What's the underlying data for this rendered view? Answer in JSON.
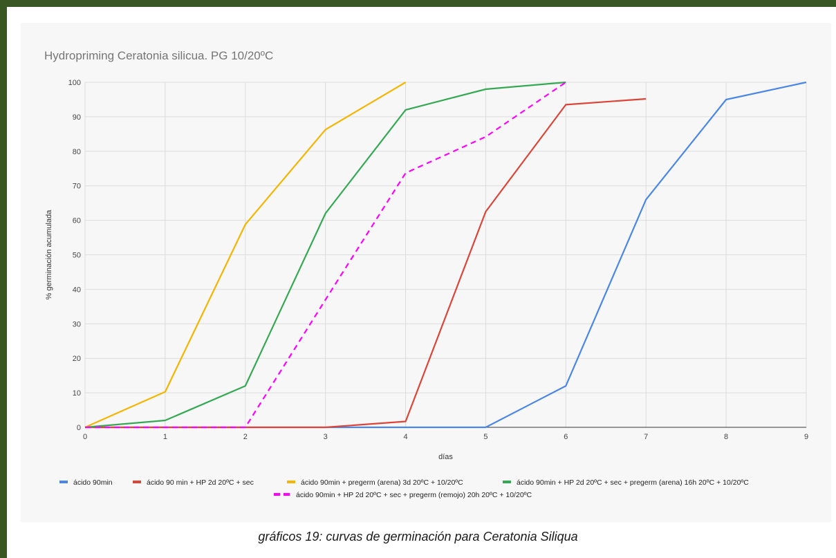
{
  "caption": "gráficos 19: curvas de germinación para Ceratonia Siliqua",
  "chart_data": {
    "type": "line",
    "title": "Hydropriming Ceratonia silicua. PG 10/20ºC",
    "xlabel": "días",
    "ylabel": "% germinación acumulada",
    "xlim": [
      0,
      9
    ],
    "ylim": [
      0,
      100
    ],
    "xticks": [
      0,
      1,
      2,
      3,
      4,
      5,
      6,
      7,
      8,
      9
    ],
    "yticks": [
      0,
      10,
      20,
      30,
      40,
      50,
      60,
      70,
      80,
      90,
      100
    ],
    "grid": true,
    "legend_position": "bottom",
    "series": [
      {
        "name": "ácido 90min",
        "color": "#4a86e8",
        "dashed": false,
        "x": [
          0,
          1,
          2,
          3,
          4,
          5,
          6,
          7,
          8,
          9
        ],
        "y": [
          0,
          0,
          0,
          0,
          0,
          0,
          12,
          66,
          95,
          100
        ]
      },
      {
        "name": "ácido 90 min + HP 2d 20ºC + sec",
        "color": "#db4437",
        "dashed": false,
        "x": [
          0,
          1,
          2,
          3,
          4,
          5,
          6,
          7
        ],
        "y": [
          0,
          0,
          0,
          0,
          1.7,
          62.5,
          93.5,
          95.2
        ]
      },
      {
        "name": "ácido 90min + pregerm (arena) 3d 20ºC + 10/20ºC",
        "color": "#f4b400",
        "dashed": false,
        "x": [
          0,
          1,
          2,
          3,
          4
        ],
        "y": [
          0,
          10.3,
          58.8,
          86.3,
          100
        ]
      },
      {
        "name": "ácido 90min + HP 2d 20ºC + sec + pregerm (arena) 16h 20ºC + 10/20ºC",
        "color": "#34a853",
        "dashed": false,
        "x": [
          0,
          1,
          2,
          3,
          4,
          5,
          6
        ],
        "y": [
          0,
          2,
          12,
          62,
          92,
          98,
          100
        ]
      },
      {
        "name": "ácido 90min + HP 2d 20ºC + sec + pregerm (remojo) 20h 20ºC + 10/20ºC",
        "color": "#ff00ff",
        "dashed": true,
        "x": [
          0,
          1,
          2,
          3,
          4,
          5,
          6
        ],
        "y": [
          0,
          0,
          0,
          37,
          73.7,
          84.2,
          100
        ]
      }
    ]
  }
}
